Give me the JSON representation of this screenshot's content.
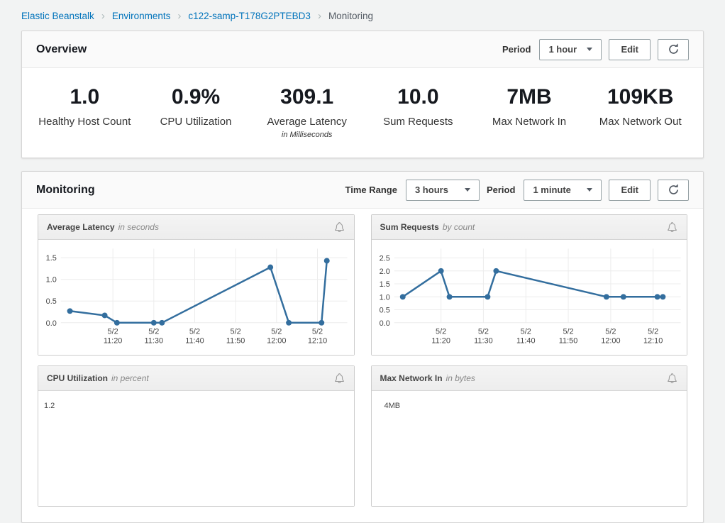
{
  "breadcrumb": {
    "items": [
      {
        "label": "Elastic Beanstalk",
        "link": true
      },
      {
        "label": "Environments",
        "link": true
      },
      {
        "label": "c122-samp-T178G2PTEBD3",
        "link": true
      },
      {
        "label": "Monitoring",
        "link": false
      }
    ]
  },
  "overview": {
    "title": "Overview",
    "period_label": "Period",
    "period_value": "1 hour",
    "edit_label": "Edit",
    "metrics": [
      {
        "value": "1.0",
        "label": "Healthy Host Count",
        "sub": ""
      },
      {
        "value": "0.9%",
        "label": "CPU Utilization",
        "sub": ""
      },
      {
        "value": "309.1",
        "label": "Average Latency",
        "sub": "in Milliseconds"
      },
      {
        "value": "10.0",
        "label": "Sum Requests",
        "sub": ""
      },
      {
        "value": "7MB",
        "label": "Max Network In",
        "sub": ""
      },
      {
        "value": "109KB",
        "label": "Max Network Out",
        "sub": ""
      }
    ]
  },
  "monitoring": {
    "title": "Monitoring",
    "time_range_label": "Time Range",
    "time_range_value": "3 hours",
    "period_label": "Period",
    "period_value": "1 minute",
    "edit_label": "Edit"
  },
  "icons": {
    "refresh": "circular-arrow-refresh",
    "alarm": "bell-outline",
    "dropdown": "caret-down-triangle",
    "breadcrumb_separator": "chevron-right"
  },
  "colors": {
    "link_blue": "#0073bb",
    "chart_line": "#336e9e",
    "gridline": "#ececec",
    "page_background": "#f2f3f3",
    "panel_header_background": "#fafafa",
    "chart_header_background": "#f1f1f1"
  },
  "chart_data": [
    {
      "type": "line",
      "title": "Average Latency",
      "subtitle": "in seconds",
      "x_unit": "minutes after 11:00 on 5/2",
      "x": [
        9.5,
        18,
        21,
        30,
        32,
        58.5,
        63,
        71,
        72.3
      ],
      "y": [
        0.27,
        0.17,
        0.0,
        0.0,
        0.0,
        1.28,
        0.0,
        0.0,
        1.43
      ],
      "xlim": [
        7.3,
        77.3
      ],
      "ylim": [
        0,
        1.71
      ],
      "grid": true,
      "legend": "none",
      "yticks": [
        {
          "v": 0,
          "label": "0.0"
        },
        {
          "v": 0.5,
          "label": "0.5"
        },
        {
          "v": 1,
          "label": "1.0"
        },
        {
          "v": 1.5,
          "label": "1.5"
        }
      ],
      "xticks": [
        {
          "v": 20,
          "date": "5/2",
          "time": "11:20"
        },
        {
          "v": 30,
          "date": "5/2",
          "time": "11:30"
        },
        {
          "v": 40,
          "date": "5/2",
          "time": "11:40"
        },
        {
          "v": 50,
          "date": "5/2",
          "time": "11:50"
        },
        {
          "v": 60,
          "date": "5/2",
          "time": "12:00"
        },
        {
          "v": 70,
          "date": "5/2",
          "time": "12:10"
        }
      ]
    },
    {
      "type": "line",
      "title": "Sum Requests",
      "subtitle": "by count",
      "x_unit": "minutes after 11:00 on 5/2",
      "x": [
        11,
        20,
        22,
        31,
        33,
        59,
        63,
        71,
        72.3
      ],
      "y": [
        1.0,
        2.0,
        1.0,
        1.0,
        2.0,
        1.0,
        1.0,
        1.0,
        1.0
      ],
      "xlim": [
        9,
        76.5
      ],
      "ylim": [
        0,
        2.86
      ],
      "grid": true,
      "legend": "none",
      "yticks": [
        {
          "v": 0,
          "label": "0.0"
        },
        {
          "v": 0.5,
          "label": "0.5"
        },
        {
          "v": 1,
          "label": "1.0"
        },
        {
          "v": 1.5,
          "label": "1.5"
        },
        {
          "v": 2,
          "label": "2.0"
        },
        {
          "v": 2.5,
          "label": "2.5"
        }
      ],
      "xticks": [
        {
          "v": 20,
          "date": "5/2",
          "time": "11:20"
        },
        {
          "v": 30,
          "date": "5/2",
          "time": "11:30"
        },
        {
          "v": 40,
          "date": "5/2",
          "time": "11:40"
        },
        {
          "v": 50,
          "date": "5/2",
          "time": "11:50"
        },
        {
          "v": 60,
          "date": "5/2",
          "time": "12:00"
        },
        {
          "v": 70,
          "date": "5/2",
          "time": "12:10"
        }
      ]
    },
    {
      "type": "line",
      "title": "CPU Utilization",
      "subtitle": "in percent",
      "partial": true,
      "partial_ylabel": "1.2",
      "partial_ylabel_left": 8,
      "x": [],
      "y": []
    },
    {
      "type": "line",
      "title": "Max Network In",
      "subtitle": "in bytes",
      "partial": true,
      "partial_ylabel": "4MB",
      "partial_ylabel_left": 18,
      "x": [],
      "y": []
    }
  ]
}
